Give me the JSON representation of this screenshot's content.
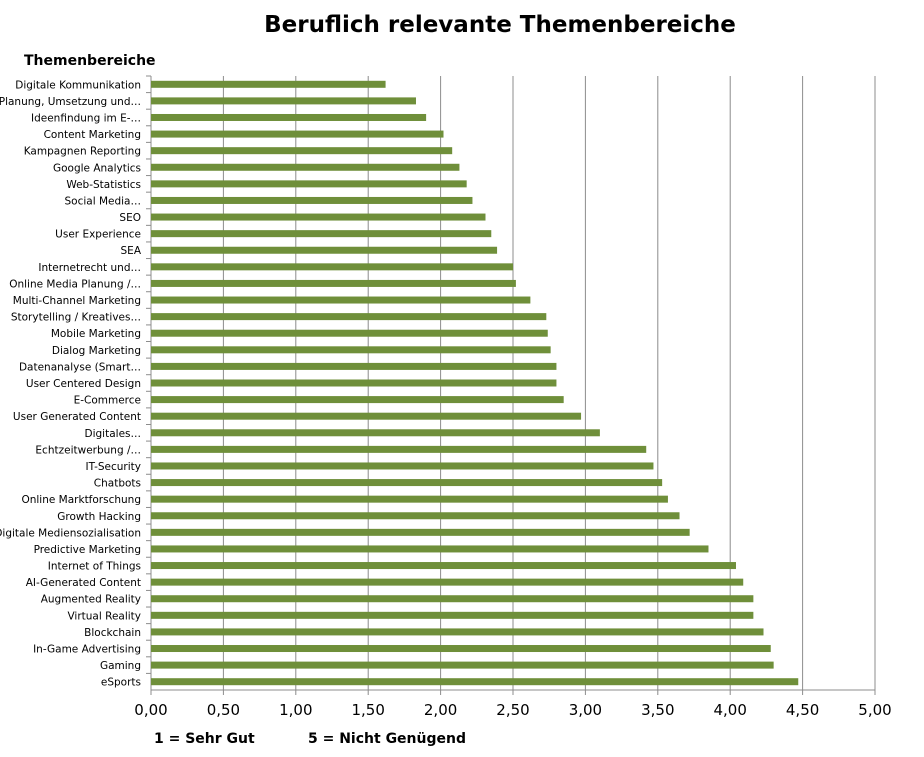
{
  "chart_data": {
    "type": "bar",
    "orientation": "horizontal",
    "title": "Beruflich relevante Themenbereiche",
    "ylabel": "Themenbereiche",
    "xlim": [
      0,
      5
    ],
    "xticks": [
      "0,00",
      "0,50",
      "1,00",
      "1,50",
      "2,00",
      "2,50",
      "3,00",
      "3,50",
      "4,00",
      "4,50",
      "5,00"
    ],
    "grid": true,
    "bar_color": "#6f8f3a",
    "categories": [
      "Digitale Kommunikation",
      "Planung, Umsetzung und…",
      "Ideenfindung im E-…",
      "Content Marketing",
      "Kampagnen Reporting",
      "Google Analytics",
      "Web-Statistics",
      "Social Media…",
      "SEO",
      "User Experience",
      "SEA",
      "Internetrecht und…",
      "Online Media Planung /…",
      "Multi-Channel Marketing",
      "Storytelling / Kreatives…",
      "Mobile Marketing",
      "Dialog Marketing",
      "Datenanalyse (Smart…",
      "User Centered Design",
      "E-Commerce",
      "User Generated Content",
      "Digitales…",
      "Echtzeitwerbung /…",
      "IT-Security",
      "Chatbots",
      "Online Marktforschung",
      "Growth Hacking",
      "Digitale Mediensozialisation",
      "Predictive Marketing",
      "Internet of Things",
      "AI-Generated Content",
      "Augmented Reality",
      "Virtual Reality",
      "Blockchain",
      "In-Game Advertising",
      "Gaming",
      "eSports"
    ],
    "values": [
      1.62,
      1.83,
      1.9,
      2.02,
      2.08,
      2.13,
      2.18,
      2.22,
      2.31,
      2.35,
      2.39,
      2.5,
      2.52,
      2.62,
      2.73,
      2.74,
      2.76,
      2.8,
      2.8,
      2.85,
      2.97,
      3.1,
      3.42,
      3.47,
      3.53,
      3.57,
      3.65,
      3.72,
      3.85,
      4.04,
      4.09,
      4.16,
      4.16,
      4.23,
      4.28,
      4.3,
      4.47
    ]
  },
  "notes": {
    "left": "1 = Sehr Gut",
    "right": "5 = Nicht Genügend"
  }
}
